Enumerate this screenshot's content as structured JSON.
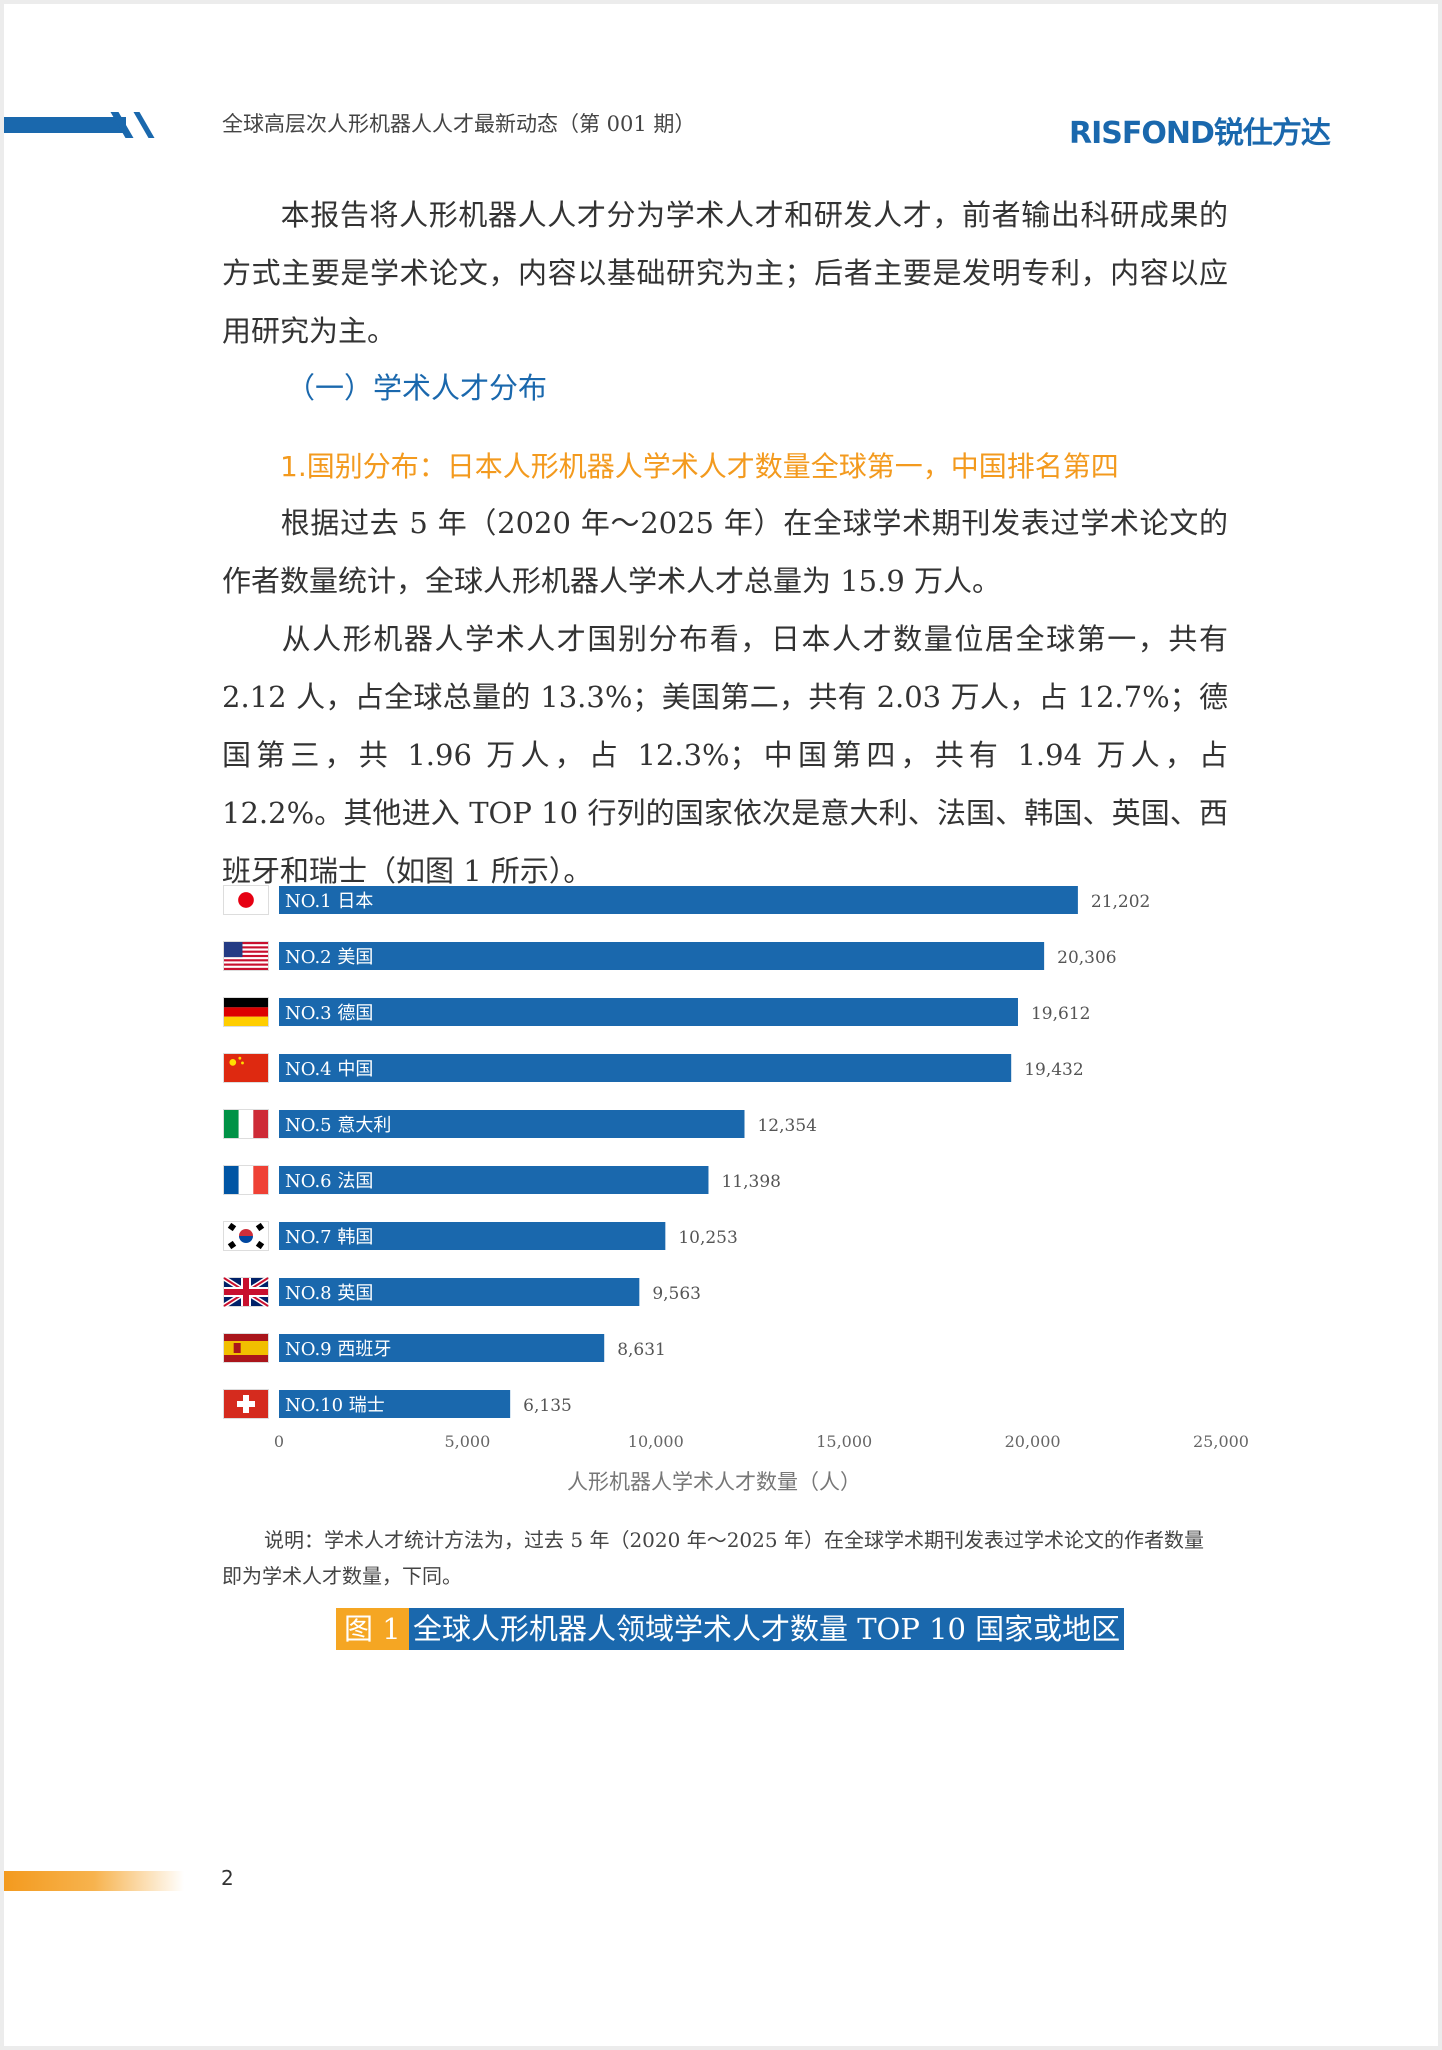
{
  "header": {
    "title": "全球高层次人形机器人人才最新动态（第 001 期）",
    "logo_text": "RISFOND",
    "logo_cn": "锐仕方达"
  },
  "paragraphs": {
    "intro": "本报告将人形机器人人才分为学术人才和研发人才，前者输出科研成果的方式主要是学术论文，内容以基础研究为主；后者主要是发明专利，内容以应用研究为主。",
    "p2": "根据过去 5 年（2020 年～2025 年）在全球学术期刊发表过学术论文的作者数量统计，全球人形机器人学术人才总量为 15.9 万人。",
    "p3": "从人形机器人学术人才国别分布看，日本人才数量位居全球第一，共有 2.12 人，占全球总量的 13.3%；美国第二，共有 2.03 万人，占 12.7%；德国第三，共 1.96 万人，占 12.3%；中国第四，共有 1.94 万人，占 12.2%。其他进入 TOP 10 行列的国家依次是意大利、法国、韩国、英国、西班牙和瑞士（如图 1 所示）。"
  },
  "section_heading": "（一）学术人才分布",
  "sub_heading": "1.国别分布：日本人形机器人学术人才数量全球第一，中国排名第四",
  "chart_data": {
    "type": "bar",
    "orientation": "horizontal",
    "categories": [
      "NO.1 日本",
      "NO.2 美国",
      "NO.3 德国",
      "NO.4 中国",
      "NO.5 意大利",
      "NO.6 法国",
      "NO.7 韩国",
      "NO.8 英国",
      "NO.9 西班牙",
      "NO.10 瑞士"
    ],
    "values": [
      21202,
      20306,
      19612,
      19432,
      12354,
      11398,
      10253,
      9563,
      8631,
      6135
    ],
    "value_labels": [
      "21,202",
      "20,306",
      "19,612",
      "19,432",
      "12,354",
      "11,398",
      "10,253",
      "9,563",
      "8,631",
      "6,135"
    ],
    "flags": [
      "japan",
      "usa",
      "germany",
      "china",
      "italy",
      "france",
      "korea",
      "uk",
      "spain",
      "switzerland"
    ],
    "xlim": [
      0,
      25000
    ],
    "xticks": [
      "0",
      "5,000",
      "10,000",
      "15,000",
      "20,000",
      "25,000"
    ],
    "xlabel": "人形机器人学术人才数量（人）",
    "bar_color": "#1a68ad",
    "grid": false
  },
  "note": "说明：学术人才统计方法为，过去 5 年（2020 年～2025 年）在全球学术期刊发表过学术论文的作者数量即为学术人才数量，下同。",
  "caption": {
    "num": "图 1",
    "title": "全球人形机器人领域学术人才数量 TOP 10 国家或地区"
  },
  "page_number": "2",
  "colors": {
    "primary_blue": "#1a68ad",
    "accent_orange": "#f39a1e"
  }
}
